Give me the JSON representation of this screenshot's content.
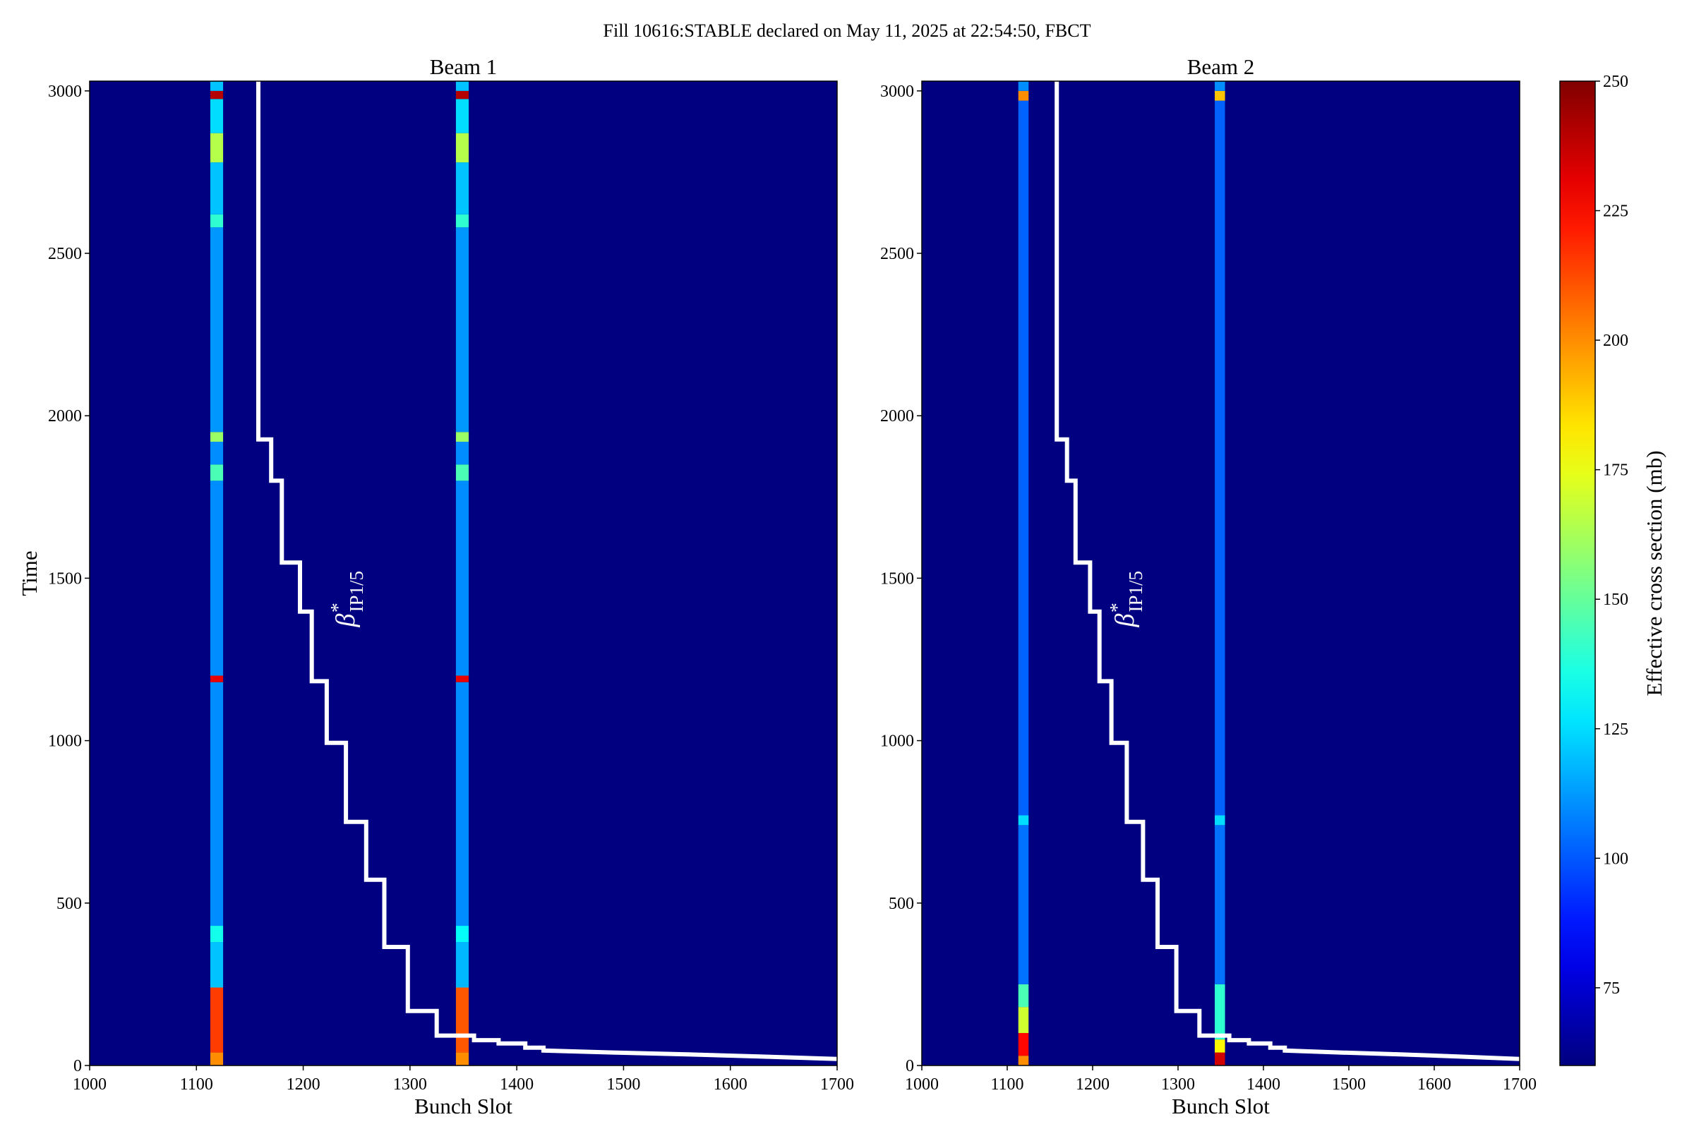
{
  "figure": {
    "suptitle": "Fill 10616:STABLE declared on May 11, 2025 at 22:54:50, FBCT"
  },
  "colorbar": {
    "label": "Effective cross section (mb)",
    "range": [
      60,
      250
    ],
    "ticks": [
      "75",
      "100",
      "125",
      "150",
      "175",
      "200",
      "225",
      "250"
    ],
    "tick_values": [
      75,
      100,
      125,
      150,
      175,
      200,
      225,
      250
    ],
    "colormap": "jet"
  },
  "annotation": {
    "symbol": "β",
    "superscript": "*",
    "subscript": "IP1/5"
  },
  "chart_data": [
    {
      "type": "heatmap",
      "title": "Beam 1",
      "xlabel": "Bunch Slot",
      "ylabel": "Time",
      "xlim": [
        1000,
        1700
      ],
      "ylim": [
        0,
        3030
      ],
      "xticks": [
        "1000",
        "1100",
        "1200",
        "1300",
        "1400",
        "1500",
        "1600",
        "1700"
      ],
      "yticks": [
        "0",
        "500",
        "1000",
        "1500",
        "2000",
        "2500",
        "3000"
      ],
      "background_value": 60,
      "bunch_columns": [
        {
          "x_range": [
            1113,
            1125
          ],
          "segments": [
            {
              "t": [
                0,
                40
              ],
              "value": 200
            },
            {
              "t": [
                40,
                240
              ],
              "value": 215
            },
            {
              "t": [
                240,
                380
              ],
              "value": 120
            },
            {
              "t": [
                380,
                430
              ],
              "value": 135
            },
            {
              "t": [
                430,
                1180
              ],
              "value": 110
            },
            {
              "t": [
                1180,
                1200
              ],
              "value": 230
            },
            {
              "t": [
                1200,
                1800
              ],
              "value": 110
            },
            {
              "t": [
                1800,
                1850
              ],
              "value": 145
            },
            {
              "t": [
                1850,
                1920
              ],
              "value": 110
            },
            {
              "t": [
                1920,
                1950
              ],
              "value": 160
            },
            {
              "t": [
                1950,
                2580
              ],
              "value": 112
            },
            {
              "t": [
                2580,
                2620
              ],
              "value": 140
            },
            {
              "t": [
                2620,
                2780
              ],
              "value": 120
            },
            {
              "t": [
                2780,
                2870
              ],
              "value": 165
            },
            {
              "t": [
                2870,
                2975
              ],
              "value": 125
            },
            {
              "t": [
                2975,
                3000
              ],
              "value": 240
            },
            {
              "t": [
                3000,
                3030
              ],
              "value": 120
            }
          ]
        },
        {
          "x_range": [
            1343,
            1355
          ],
          "segments": [
            {
              "t": [
                0,
                40
              ],
              "value": 200
            },
            {
              "t": [
                40,
                240
              ],
              "value": 210
            },
            {
              "t": [
                240,
                380
              ],
              "value": 118
            },
            {
              "t": [
                380,
                430
              ],
              "value": 132
            },
            {
              "t": [
                430,
                1180
              ],
              "value": 110
            },
            {
              "t": [
                1180,
                1200
              ],
              "value": 230
            },
            {
              "t": [
                1200,
                1800
              ],
              "value": 110
            },
            {
              "t": [
                1800,
                1850
              ],
              "value": 145
            },
            {
              "t": [
                1850,
                1920
              ],
              "value": 110
            },
            {
              "t": [
                1920,
                1950
              ],
              "value": 160
            },
            {
              "t": [
                1950,
                2580
              ],
              "value": 112
            },
            {
              "t": [
                2580,
                2620
              ],
              "value": 140
            },
            {
              "t": [
                2620,
                2780
              ],
              "value": 120
            },
            {
              "t": [
                2780,
                2870
              ],
              "value": 165
            },
            {
              "t": [
                2870,
                2975
              ],
              "value": 125
            },
            {
              "t": [
                2975,
                3000
              ],
              "value": 240
            },
            {
              "t": [
                3000,
                3030
              ],
              "value": 120
            }
          ]
        }
      ],
      "beta_line": [
        [
          1700,
          20
        ],
        [
          1625,
          28
        ],
        [
          1560,
          34
        ],
        [
          1490,
          40
        ],
        [
          1425,
          46
        ],
        [
          1425,
          55
        ],
        [
          1408,
          55
        ],
        [
          1408,
          68
        ],
        [
          1383,
          68
        ],
        [
          1383,
          78
        ],
        [
          1360,
          78
        ],
        [
          1360,
          92
        ],
        [
          1325,
          92
        ],
        [
          1325,
          168
        ],
        [
          1298,
          168
        ],
        [
          1298,
          365
        ],
        [
          1276,
          365
        ],
        [
          1276,
          572
        ],
        [
          1259,
          572
        ],
        [
          1259,
          750
        ],
        [
          1240,
          750
        ],
        [
          1240,
          993
        ],
        [
          1222,
          993
        ],
        [
          1222,
          1183
        ],
        [
          1208,
          1183
        ],
        [
          1208,
          1397
        ],
        [
          1197,
          1397
        ],
        [
          1197,
          1548
        ],
        [
          1180,
          1548
        ],
        [
          1180,
          1800
        ],
        [
          1170,
          1800
        ],
        [
          1170,
          1927
        ],
        [
          1158,
          1927
        ],
        [
          1158,
          3030
        ]
      ]
    },
    {
      "type": "heatmap",
      "title": "Beam 2",
      "xlabel": "Bunch Slot",
      "ylabel": "",
      "xlim": [
        1000,
        1700
      ],
      "ylim": [
        0,
        3030
      ],
      "xticks": [
        "1000",
        "1100",
        "1200",
        "1300",
        "1400",
        "1500",
        "1600",
        "1700"
      ],
      "yticks": [
        "0",
        "500",
        "1000",
        "1500",
        "2000",
        "2500",
        "3000"
      ],
      "background_value": 60,
      "bunch_columns": [
        {
          "x_range": [
            1113,
            1125
          ],
          "segments": [
            {
              "t": [
                0,
                30
              ],
              "value": 200
            },
            {
              "t": [
                30,
                100
              ],
              "value": 225
            },
            {
              "t": [
                100,
                180
              ],
              "value": 170
            },
            {
              "t": [
                180,
                250
              ],
              "value": 145
            },
            {
              "t": [
                250,
                740
              ],
              "value": 105
            },
            {
              "t": [
                740,
                770
              ],
              "value": 125
            },
            {
              "t": [
                770,
                2970
              ],
              "value": 102
            },
            {
              "t": [
                2970,
                3000
              ],
              "value": 200
            },
            {
              "t": [
                3000,
                3030
              ],
              "value": 110
            }
          ]
        },
        {
          "x_range": [
            1343,
            1355
          ],
          "segments": [
            {
              "t": [
                0,
                40
              ],
              "value": 235
            },
            {
              "t": [
                40,
                80
              ],
              "value": 180
            },
            {
              "t": [
                80,
                250
              ],
              "value": 140
            },
            {
              "t": [
                250,
                740
              ],
              "value": 105
            },
            {
              "t": [
                740,
                770
              ],
              "value": 125
            },
            {
              "t": [
                770,
                2970
              ],
              "value": 102
            },
            {
              "t": [
                2970,
                3000
              ],
              "value": 190
            },
            {
              "t": [
                3000,
                3030
              ],
              "value": 110
            }
          ]
        }
      ],
      "beta_line": [
        [
          1700,
          20
        ],
        [
          1625,
          28
        ],
        [
          1560,
          34
        ],
        [
          1490,
          40
        ],
        [
          1425,
          46
        ],
        [
          1425,
          55
        ],
        [
          1408,
          55
        ],
        [
          1408,
          68
        ],
        [
          1383,
          68
        ],
        [
          1383,
          78
        ],
        [
          1360,
          78
        ],
        [
          1360,
          92
        ],
        [
          1325,
          92
        ],
        [
          1325,
          168
        ],
        [
          1298,
          168
        ],
        [
          1298,
          365
        ],
        [
          1276,
          365
        ],
        [
          1276,
          572
        ],
        [
          1259,
          572
        ],
        [
          1259,
          750
        ],
        [
          1240,
          750
        ],
        [
          1240,
          993
        ],
        [
          1222,
          993
        ],
        [
          1222,
          1183
        ],
        [
          1208,
          1183
        ],
        [
          1208,
          1397
        ],
        [
          1197,
          1397
        ],
        [
          1197,
          1548
        ],
        [
          1180,
          1548
        ],
        [
          1180,
          1800
        ],
        [
          1170,
          1800
        ],
        [
          1170,
          1927
        ],
        [
          1158,
          1927
        ],
        [
          1158,
          3030
        ]
      ]
    }
  ]
}
